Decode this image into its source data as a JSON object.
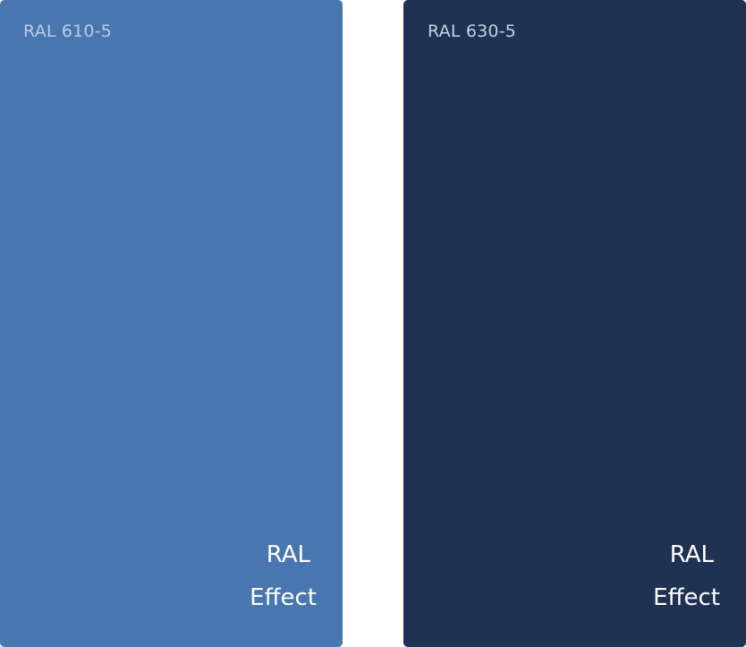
{
  "swatches": [
    {
      "code": "RAL 610-5",
      "color": "#4876AE",
      "code_color": "#B8CDE6",
      "brand_line1": "RAL",
      "brand_line2": "Effect"
    },
    {
      "code": "RAL 630-5",
      "color": "#1F3253",
      "code_color": "#C7D1DF",
      "brand_line1": "RAL",
      "brand_line2": "Effect"
    }
  ]
}
